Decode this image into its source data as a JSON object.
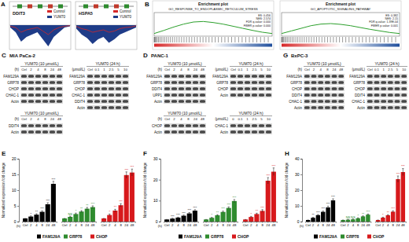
{
  "figure": {
    "A": {
      "letter": "A",
      "legend": [
        {
          "name": "Control",
          "color": "#d62728"
        },
        {
          "name": "YUM70",
          "color": "#1f3c88"
        }
      ],
      "tracks": [
        {
          "gene": "DDIT3",
          "ylim": [
            0,
            1
          ],
          "control": [
            0.05,
            0.1,
            0.3,
            0.2,
            0.15,
            0.1,
            0.25,
            0.4,
            0.2,
            0.1,
            0.05,
            0.02
          ],
          "yum70": [
            0.1,
            0.3,
            0.7,
            0.5,
            0.4,
            0.3,
            0.6,
            0.9,
            0.5,
            0.3,
            0.1,
            0.05
          ]
        },
        {
          "gene": "HSPA5",
          "ylim": [
            0,
            1
          ],
          "control": [
            0.05,
            0.15,
            0.2,
            0.3,
            0.25,
            0.2,
            0.3,
            0.25,
            0.15,
            0.1,
            0.08,
            0.03
          ],
          "yum70": [
            0.15,
            0.4,
            0.55,
            0.8,
            0.6,
            0.5,
            0.75,
            0.6,
            0.4,
            0.3,
            0.2,
            0.1
          ]
        }
      ]
    },
    "B": {
      "letter": "B",
      "plots": [
        {
          "heading": "Enrichment plot",
          "title": "GO_RESPONSE_TO_ENDOPLASMIC_RETICULUM_STRESS",
          "stats": [
            "ES: 0.456",
            "NES: 2.574",
            "FDR q-value: 0.000",
            "FWER p-value: 0.000"
          ],
          "ylim": [
            -0.1,
            0.8
          ],
          "color": "#2ca02c",
          "es": [
            0,
            0.12,
            0.25,
            0.36,
            0.44,
            0.46,
            0.42,
            0.36,
            0.28,
            0.2,
            0.12,
            0.05,
            0
          ]
        },
        {
          "heading": "Enrichment plot",
          "title": "GO_APOPTOTIC_SIGNALING_PATHWAY",
          "stats": [
            "ES: 0.382",
            "NES: 2.15",
            "FDR q-value: 1.39E-04",
            "FWER p-value: 0.001"
          ],
          "ylim": [
            -0.1,
            0.8
          ],
          "color": "#2ca02c",
          "es": [
            0,
            0.1,
            0.2,
            0.3,
            0.36,
            0.38,
            0.35,
            0.3,
            0.23,
            0.16,
            0.1,
            0.04,
            0
          ]
        }
      ]
    },
    "blots": [
      {
        "letter": "C",
        "cell_line": "MIA PaCa-2",
        "blots": [
          {
            "header": "YUM70 (10 μmol/L)",
            "unit": "(h)",
            "lanes": [
              "Ctrl",
              "2",
              "4",
              "8",
              "24",
              "48"
            ],
            "rows": [
              "FAM129A",
              "GRP78",
              "CHOP",
              "CHAC-1",
              "Actin"
            ]
          },
          {
            "header": "YUM70 (24 h)",
            "unit": "(μmol/L)",
            "lanes": [
              "Ctrl",
              "0.1",
              "1",
              "2.5",
              "5",
              "10"
            ],
            "rows": [
              "FAM129A",
              "GRP78",
              "CHOP",
              "CHAC-1",
              "DDIT4",
              "Actin"
            ]
          },
          {
            "header": "YUM70 (10 μmol/L)",
            "unit": "(h)",
            "lanes": [
              "Ctrl",
              "2",
              "4",
              "8",
              "24",
              "48"
            ],
            "rows": [
              "DDIT4",
              "Actin"
            ]
          }
        ]
      },
      {
        "letter": "D",
        "cell_line": "PANC-1",
        "blots": [
          {
            "header": "YUM70 (10 μmol/L)",
            "unit": "(h)",
            "lanes": [
              "Ctrl",
              "2",
              "4",
              "8",
              "24",
              "48"
            ],
            "rows": [
              "FAM129A",
              "GRP78",
              "DDIT4",
              "UPP1",
              "Actin"
            ]
          },
          {
            "header": "YUM70 (10 μmol/L)",
            "unit": "(h)",
            "lanes": [
              "Ctrl",
              "2",
              "4",
              "8",
              "24",
              "48"
            ],
            "rows": [
              "CHOP",
              "Actin"
            ]
          },
          {
            "header": "YUM70 (24 h)",
            "unit": "(μmol/L)",
            "lanes": [
              "Ctrl",
              "0.1",
              "1",
              "2.5",
              "5",
              "10"
            ],
            "rows": [
              "FAM129A",
              "GRP78",
              "CHOP",
              "Actin"
            ]
          },
          {
            "header": "YUM70 (24 h)",
            "unit": "(μmol/L)",
            "lanes": [
              "0",
              "0.1",
              "1",
              "2.5",
              "5",
              "10"
            ],
            "rows": [
              "CHAC-1",
              "Actin"
            ]
          }
        ]
      },
      {
        "letter": "G",
        "cell_line": "BxPC-3",
        "blots": [
          {
            "header": "YUM70 (10 μmol/L)",
            "unit": "(h)",
            "lanes": [
              "Ctrl",
              "2",
              "4",
              "8",
              "24",
              "48"
            ],
            "rows": [
              "FAM129A",
              "GRP78",
              "CHOP",
              "DDIT4",
              "CHAC-1",
              "Actin"
            ]
          },
          {
            "header": "YUM70 (24 h)",
            "unit": "(μmol/L)",
            "lanes": [
              "Ctrl",
              "0.1",
              "1",
              "2.5",
              "5",
              "10"
            ],
            "rows": [
              "FAM129A",
              "GRP78",
              "CHOP",
              "DDIT4",
              "CHAC-1",
              "Actin"
            ]
          }
        ]
      }
    ]
  },
  "chart_data": [
    {
      "type": "bar",
      "title": "E",
      "xlabel": "(h)",
      "ylabel": "Normalized expression fold change",
      "categories": [
        "Ctrl",
        "2",
        "4",
        "8",
        "24",
        "48"
      ],
      "ylim": [
        0,
        20
      ],
      "yticks": [
        0,
        5,
        10,
        15,
        20
      ],
      "grid": false,
      "legend": "bottom",
      "series": [
        {
          "name": "FAM129A",
          "color": "#000000",
          "values": [
            1,
            1.6,
            2.2,
            3.1,
            5.5,
            12
          ],
          "errors": [
            0,
            0.2,
            0.3,
            0.3,
            0.5,
            0.8
          ],
          "significance": [
            null,
            "*",
            "**",
            "***",
            "***",
            "***"
          ]
        },
        {
          "name": "GRP78",
          "color": "#2e8b2e",
          "values": [
            1,
            1.5,
            2.4,
            3.2,
            4.1,
            4.6
          ],
          "errors": [
            0,
            0.2,
            0.3,
            0.3,
            0.4,
            0.4
          ],
          "significance": [
            null,
            "NS",
            "*",
            "**",
            "**",
            "***"
          ]
        },
        {
          "name": "CHOP",
          "color": "#d7191c",
          "values": [
            1,
            2.1,
            3.5,
            5.2,
            14.8,
            15.6
          ],
          "errors": [
            0,
            0.3,
            0.4,
            0.5,
            1.0,
            1.1
          ],
          "significance": [
            null,
            "*",
            "**",
            "***",
            "***",
            "***"
          ]
        }
      ]
    },
    {
      "type": "bar",
      "title": "F",
      "xlabel": "(h)",
      "ylabel": "Normalized expression fold change",
      "categories": [
        "Ctrl",
        "2",
        "4",
        "8",
        "24",
        "48"
      ],
      "ylim": [
        0,
        30
      ],
      "yticks": [
        0,
        10,
        20,
        30
      ],
      "grid": false,
      "legend": "bottom",
      "series": [
        {
          "name": "FAM129A",
          "color": "#000000",
          "values": [
            1,
            1.4,
            1.9,
            2.8,
            3.9,
            5.2
          ],
          "errors": [
            0,
            0.2,
            0.2,
            0.3,
            0.4,
            0.5
          ],
          "significance": [
            null,
            "***",
            "***",
            "***",
            "***",
            "***"
          ]
        },
        {
          "name": "GRP78",
          "color": "#2e8b2e",
          "values": [
            1,
            1.8,
            3.0,
            4.6,
            6.5,
            9.8
          ],
          "errors": [
            0,
            0.2,
            0.3,
            0.4,
            0.5,
            0.7
          ],
          "significance": [
            null,
            "*",
            "**",
            "***",
            "***",
            "***"
          ]
        },
        {
          "name": "CHOP",
          "color": "#d7191c",
          "values": [
            1,
            2.2,
            3.6,
            5.1,
            19.5,
            23.8
          ],
          "errors": [
            0,
            0.3,
            0.4,
            0.6,
            1.5,
            1.8
          ],
          "significance": [
            null,
            "*",
            "**",
            "***",
            "***",
            "***"
          ]
        }
      ]
    },
    {
      "type": "bar",
      "title": "H",
      "xlabel": "(h)",
      "ylabel": "Normalized expression fold change",
      "categories": [
        "Ctrl",
        "2",
        "4",
        "8",
        "24",
        "48"
      ],
      "ylim": [
        0,
        40
      ],
      "yticks": [
        0,
        10,
        20,
        30,
        40
      ],
      "grid": false,
      "legend": "bottom",
      "series": [
        {
          "name": "FAM129A",
          "color": "#000000",
          "values": [
            1,
            2.4,
            4.1,
            6.2,
            9.0,
            13.5
          ],
          "errors": [
            0,
            0.3,
            0.4,
            0.5,
            0.8,
            1.0
          ],
          "significance": [
            null,
            "**",
            "***",
            "***",
            "***",
            "***"
          ]
        },
        {
          "name": "GRP78",
          "color": "#2e8b2e",
          "values": [
            1,
            1.2,
            1.4,
            2.1,
            3.3,
            4.4
          ],
          "errors": [
            0,
            0.2,
            0.2,
            0.3,
            0.3,
            0.4
          ],
          "significance": [
            null,
            "NS",
            "NS",
            "*",
            "**",
            "***"
          ]
        },
        {
          "name": "CHOP",
          "color": "#d7191c",
          "values": [
            1,
            2.5,
            4.0,
            6.3,
            27,
            31.5
          ],
          "errors": [
            0,
            0.3,
            0.4,
            0.6,
            2.0,
            2.2
          ],
          "significance": [
            null,
            "*",
            "**",
            "***",
            "***",
            "***"
          ]
        }
      ]
    }
  ]
}
